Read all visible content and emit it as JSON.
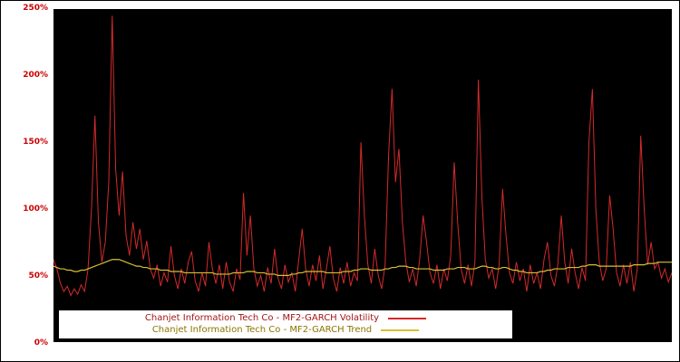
{
  "chart_data": {
    "type": "line",
    "title": "",
    "xlabel": "",
    "ylabel": "",
    "ylim": [
      0,
      250
    ],
    "grid": false,
    "plot_background": "#000000",
    "frame_color": "#ffffff",
    "axis_label_color": "#cc0000",
    "legend_position": "bottom-left-inside",
    "y_ticks": [
      "0%",
      "50%",
      "100%",
      "150%",
      "200%",
      "250%"
    ],
    "y_tick_values": [
      0,
      50,
      100,
      150,
      200,
      250
    ],
    "series": [
      {
        "name": "Chanjet Information Tech Co - MF2-GARCH Volatility",
        "color": "#d42a2a",
        "legend_text_color": "#a51515",
        "stroke_width": 1,
        "values": [
          62,
          55,
          44,
          38,
          42,
          35,
          40,
          36,
          43,
          38,
          55,
          100,
          170,
          90,
          60,
          75,
          120,
          245,
          130,
          95,
          128,
          80,
          65,
          90,
          70,
          85,
          62,
          76,
          55,
          48,
          58,
          42,
          52,
          45,
          72,
          50,
          40,
          55,
          44,
          60,
          68,
          46,
          38,
          52,
          42,
          75,
          55,
          44,
          58,
          40,
          60,
          45,
          38,
          55,
          47,
          112,
          65,
          95,
          55,
          42,
          50,
          38,
          56,
          44,
          70,
          48,
          40,
          58,
          45,
          52,
          38,
          62,
          85,
          55,
          42,
          58,
          46,
          65,
          40,
          55,
          72,
          48,
          38,
          56,
          44,
          60,
          42,
          52,
          46,
          150,
          95,
          58,
          44,
          70,
          50,
          40,
          58,
          140,
          190,
          120,
          145,
          90,
          60,
          45,
          55,
          42,
          62,
          95,
          75,
          52,
          44,
          58,
          40,
          55,
          46,
          65,
          135,
          90,
          55,
          44,
          58,
          42,
          60,
          197,
          110,
          62,
          48,
          55,
          40,
          58,
          115,
          80,
          52,
          44,
          60,
          46,
          55,
          38,
          58,
          44,
          52,
          40,
          62,
          75,
          50,
          42,
          58,
          95,
          60,
          44,
          70,
          52,
          40,
          56,
          46,
          150,
          190,
          100,
          60,
          46,
          55,
          110,
          85,
          52,
          42,
          58,
          44,
          60,
          38,
          55,
          155,
          100,
          58,
          75,
          55,
          60,
          48,
          55,
          45,
          52
        ]
      },
      {
        "name": "Chanjet Information Tech Co - MF2-GARCH Trend",
        "color": "#d8c032",
        "legend_text_color": "#8a7500",
        "stroke_width": 1.2,
        "values": [
          57,
          56,
          55,
          55,
          54,
          54,
          53,
          53,
          54,
          54,
          55,
          56,
          57,
          58,
          59,
          60,
          61,
          62,
          62,
          62,
          61,
          60,
          59,
          58,
          57,
          57,
          56,
          56,
          55,
          55,
          55,
          54,
          54,
          54,
          53,
          53,
          53,
          53,
          52,
          52,
          52,
          52,
          52,
          52,
          52,
          52,
          52,
          51,
          51,
          51,
          51,
          51,
          52,
          52,
          52,
          52,
          53,
          53,
          53,
          52,
          52,
          52,
          51,
          51,
          51,
          50,
          50,
          50,
          50,
          51,
          51,
          52,
          52,
          53,
          53,
          53,
          53,
          53,
          53,
          52,
          52,
          52,
          52,
          52,
          53,
          53,
          53,
          54,
          54,
          55,
          55,
          55,
          54,
          54,
          54,
          54,
          55,
          55,
          56,
          56,
          57,
          57,
          57,
          56,
          56,
          55,
          55,
          55,
          55,
          55,
          54,
          54,
          54,
          54,
          55,
          55,
          55,
          56,
          56,
          56,
          55,
          55,
          55,
          56,
          57,
          57,
          56,
          56,
          55,
          55,
          56,
          56,
          55,
          54,
          54,
          53,
          53,
          52,
          52,
          52,
          52,
          53,
          53,
          54,
          54,
          55,
          55,
          55,
          55,
          56,
          56,
          56,
          56,
          57,
          57,
          58,
          58,
          58,
          57,
          57,
          57,
          57,
          57,
          57,
          57,
          57,
          57,
          57,
          58,
          58,
          58,
          58,
          59,
          59,
          59,
          60,
          60,
          60,
          60,
          60
        ]
      }
    ]
  }
}
